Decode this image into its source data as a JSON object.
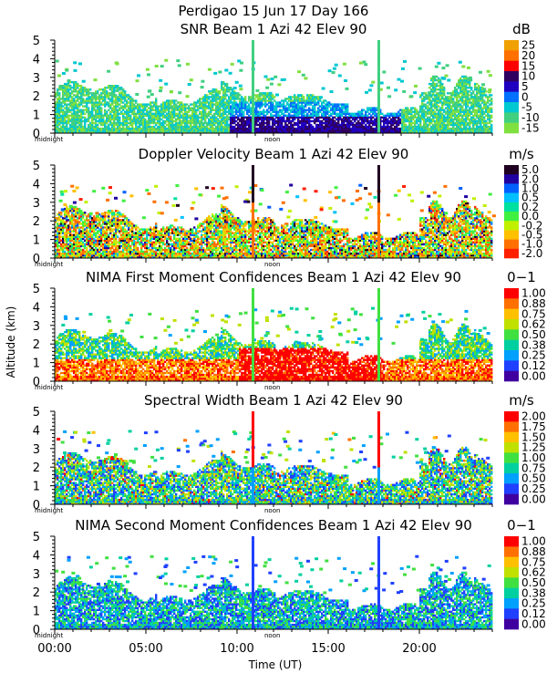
{
  "header": {
    "line1": "Perdigao  15 Jun 17 Day 166",
    "ylabel": "Altitude (km)",
    "xlabel": "Time (UT)"
  },
  "x_ticks": [
    "00:00",
    "05:00",
    "10:00",
    "15:00",
    "20:00"
  ],
  "x_tick_hours": [
    0,
    5,
    10,
    15,
    20
  ],
  "axis_markers": {
    "midnight": "midnight",
    "noon": "noon"
  },
  "chart_data": [
    {
      "type": "heatmap",
      "title": "SNR Beam 1 Azi  42 Elev 90",
      "unit": "dB",
      "x_range_hours": [
        0,
        24
      ],
      "y_range_km": [
        0,
        5
      ],
      "y_ticks": [
        "0",
        "1",
        "2",
        "3",
        "4",
        "5"
      ],
      "colorbar_labels": [
        "25",
        "20",
        "15",
        "10",
        "5",
        "0",
        "-5",
        "-10",
        "-15"
      ],
      "colorbar_colors": [
        "#f0a000",
        "#ff7000",
        "#ff0000",
        "#300060",
        "#2000c0",
        "#0070ff",
        "#00c8d0",
        "#40d080",
        "#80e040"
      ]
    },
    {
      "type": "heatmap",
      "title": "Doppler Velocity Beam 1 Azi  42 Elev 90",
      "unit": "m/s",
      "x_range_hours": [
        0,
        24
      ],
      "y_range_km": [
        0,
        5
      ],
      "y_ticks": [
        "0",
        "1",
        "2",
        "3",
        "4",
        "5"
      ],
      "colorbar_labels": [
        "5.0",
        "2.0",
        "1.0",
        "0.5",
        "0.2",
        "0.0",
        "-0.2",
        "-0.5",
        "-1.0",
        "-2.0"
      ],
      "colorbar_colors": [
        "#200020",
        "#2000a0",
        "#0060ff",
        "#00c0ff",
        "#00e0a0",
        "#40f040",
        "#c0f000",
        "#ffc000",
        "#ff7000",
        "#ff2000"
      ]
    },
    {
      "type": "heatmap",
      "title": "NIMA First Moment Confidences Beam 1 Azi  42 Elev 90",
      "unit": "0−1",
      "x_range_hours": [
        0,
        24
      ],
      "y_range_km": [
        0,
        5
      ],
      "y_ticks": [
        "0",
        "1",
        "2",
        "3",
        "4",
        "5"
      ],
      "colorbar_labels": [
        "1.00",
        "0.88",
        "0.75",
        "0.62",
        "0.50",
        "0.38",
        "0.25",
        "0.12",
        "0.00"
      ],
      "colorbar_colors": [
        "#ff0000",
        "#ff7000",
        "#ffc000",
        "#c0e000",
        "#40e040",
        "#00d0a0",
        "#00a0ff",
        "#2040ff",
        "#4000a0"
      ]
    },
    {
      "type": "heatmap",
      "title": "Spectral Width Beam 1 Azi  42 Elev 90",
      "unit": "m/s",
      "x_range_hours": [
        0,
        24
      ],
      "y_range_km": [
        0,
        5
      ],
      "y_ticks": [
        "0",
        "1",
        "2",
        "3",
        "4",
        "5"
      ],
      "colorbar_labels": [
        "2.00",
        "1.75",
        "1.50",
        "1.25",
        "1.00",
        "0.75",
        "0.50",
        "0.25",
        "0.00"
      ],
      "colorbar_colors": [
        "#ff0000",
        "#ff7000",
        "#ffc000",
        "#c0e000",
        "#40e040",
        "#00d0a0",
        "#00a0ff",
        "#2040ff",
        "#4000a0"
      ]
    },
    {
      "type": "heatmap",
      "title": "NIMA Second Moment Confidences Beam 1 Azi  42 Elev 90",
      "unit": "0−1",
      "x_range_hours": [
        0,
        24
      ],
      "y_range_km": [
        0,
        5
      ],
      "y_ticks": [
        "0",
        "1",
        "2",
        "3",
        "4",
        "5"
      ],
      "colorbar_labels": [
        "1.00",
        "0.88",
        "0.75",
        "0.62",
        "0.50",
        "0.38",
        "0.25",
        "0.12",
        "0.00"
      ],
      "colorbar_colors": [
        "#ff0000",
        "#ff7000",
        "#ffc000",
        "#c0e000",
        "#40e040",
        "#00d0a0",
        "#00a0ff",
        "#2040ff",
        "#4000a0"
      ]
    }
  ]
}
